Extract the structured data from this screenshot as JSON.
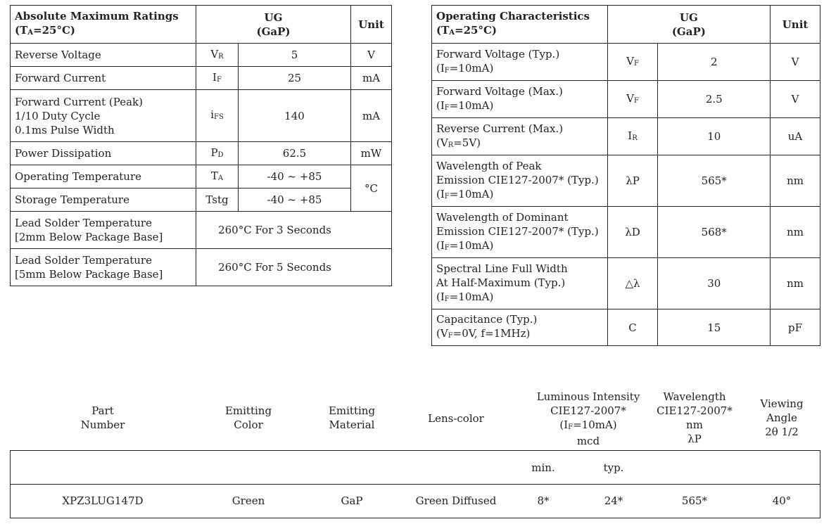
{
  "abs_table": {
    "title_line1": "Absolute Maximum Ratings",
    "title_line2_pre": "(T",
    "title_line2_sub": "A",
    "title_line2_post": "=25°C)",
    "col_ug": "UG",
    "col_gap": "(GaP)",
    "col_unit": "Unit",
    "rows": [
      {
        "param": "Reverse Voltage",
        "sym": "V",
        "sym_sub": "R",
        "value": "5",
        "unit": "V"
      },
      {
        "param": "Forward Current",
        "sym": "I",
        "sym_sub": "F",
        "value": "25",
        "unit": "mA"
      },
      {
        "param_l1": "Forward Current (Peak)",
        "param_l2": "1/10 Duty Cycle",
        "param_l3": "0.1ms Pulse Width",
        "sym": "i",
        "sym_sub": "FS",
        "value": "140",
        "unit": "mA"
      },
      {
        "param": "Power Dissipation",
        "sym": "P",
        "sym_sub": "D",
        "value": "62.5",
        "unit": "mW"
      },
      {
        "param": "Operating Temperature",
        "sym": "T",
        "sym_sub": "A",
        "value": "-40 ~ +85",
        "unit": "°C"
      },
      {
        "param": "Storage Temperature",
        "sym": "Tstg",
        "value": "-40 ~ +85"
      },
      {
        "param_l1": "Lead Solder Temperature",
        "param_l2": "[2mm Below Package Base]",
        "value": "260°C For 3 Seconds"
      },
      {
        "param_l1": "Lead Solder Temperature",
        "param_l2": "[5mm Below Package Base]",
        "value": "260°C For 5 Seconds"
      }
    ]
  },
  "op_table": {
    "title_line1": "Operating Characteristics",
    "title_line2_pre": "(T",
    "title_line2_sub": "A",
    "title_line2_post": "=25°C)",
    "col_ug": "UG",
    "col_gap": "(GaP)",
    "col_unit": "Unit",
    "rows": [
      {
        "l1": "Forward Voltage (Typ.)",
        "l2_pre": "(I",
        "l2_sub": "F",
        "l2_post": "=10mA)",
        "sym": "V",
        "sym_sub": "F",
        "value": "2",
        "unit": "V"
      },
      {
        "l1": "Forward Voltage (Max.)",
        "l2_pre": "(I",
        "l2_sub": "F",
        "l2_post": "=10mA)",
        "sym": "V",
        "sym_sub": "F",
        "value": "2.5",
        "unit": "V"
      },
      {
        "l1": "Reverse Current (Max.)",
        "l2_pre": "(V",
        "l2_sub": "R",
        "l2_post": "=5V)",
        "sym": "I",
        "sym_sub": "R",
        "value": "10",
        "unit": "uA"
      },
      {
        "l1": "Wavelength of Peak",
        "l2": "Emission CIE127-2007* (Typ.)",
        "l3_pre": "(I",
        "l3_sub": "F",
        "l3_post": "=10mA)",
        "sym": "λP",
        "value": "565*",
        "unit": "nm"
      },
      {
        "l1": "Wavelength of Dominant",
        "l2": "Emission CIE127-2007* (Typ.)",
        "l3_pre": "(I",
        "l3_sub": "F",
        "l3_post": "=10mA)",
        "sym": "λD",
        "value": "568*",
        "unit": "nm"
      },
      {
        "l1": "Spectral Line Full Width",
        "l2": "At Half-Maximum (Typ.)",
        "l3_pre": "(I",
        "l3_sub": "F",
        "l3_post": "=10mA)",
        "sym": "△λ",
        "value": "30",
        "unit": "nm"
      },
      {
        "l1": "Capacitance (Typ.)",
        "l2_pre": "(V",
        "l2_sub": "F",
        "l2_post": "=0V, f=1MHz)",
        "sym": "C",
        "value": "15",
        "unit": "pF"
      }
    ]
  },
  "part_table": {
    "headers": {
      "part_l1": "Part",
      "part_l2": "Number",
      "color_l1": "Emitting",
      "color_l2": "Color",
      "material_l1": "Emitting",
      "material_l2": "Material",
      "lens": "Lens-color",
      "lum_l1": "Luminous Intensity",
      "lum_l2": "CIE127-2007*",
      "lum_l3_pre": "(I",
      "lum_l3_sub": "F",
      "lum_l3_post": "=10mA)",
      "lum_l4": "mcd",
      "wl_l1": "Wavelength",
      "wl_l2": "CIE127-2007*",
      "wl_l3": "nm",
      "wl_l4": "λP",
      "va_l1": "Viewing",
      "va_l2": "Angle",
      "va_l3": "2θ 1/2"
    },
    "sub_min": "min.",
    "sub_typ": "typ.",
    "row": {
      "part": "XPZ3LUG147D",
      "color": "Green",
      "material": "GaP",
      "lens": "Green Diffused",
      "min": "8*",
      "typ": "24*",
      "wavelength": "565*",
      "angle": "40°"
    }
  }
}
